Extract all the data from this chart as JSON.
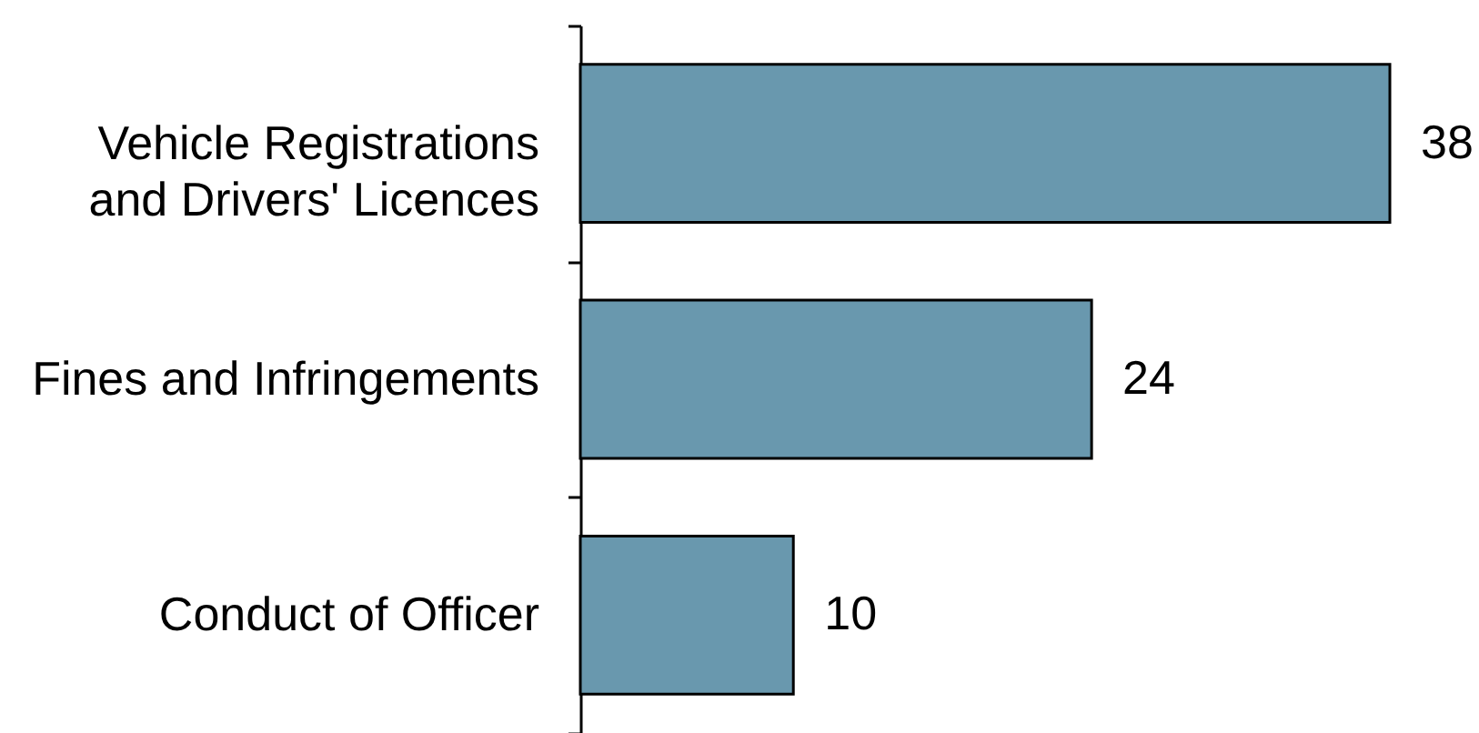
{
  "chart_data": {
    "type": "bar",
    "orientation": "horizontal",
    "categories": [
      "Vehicle Registrations\nand Drivers' Licences",
      "Fines and Infringements",
      "Conduct of Officer"
    ],
    "values": [
      38,
      24,
      10
    ],
    "color": "#6998ae",
    "data_labels": true,
    "tick_labels": "y"
  }
}
